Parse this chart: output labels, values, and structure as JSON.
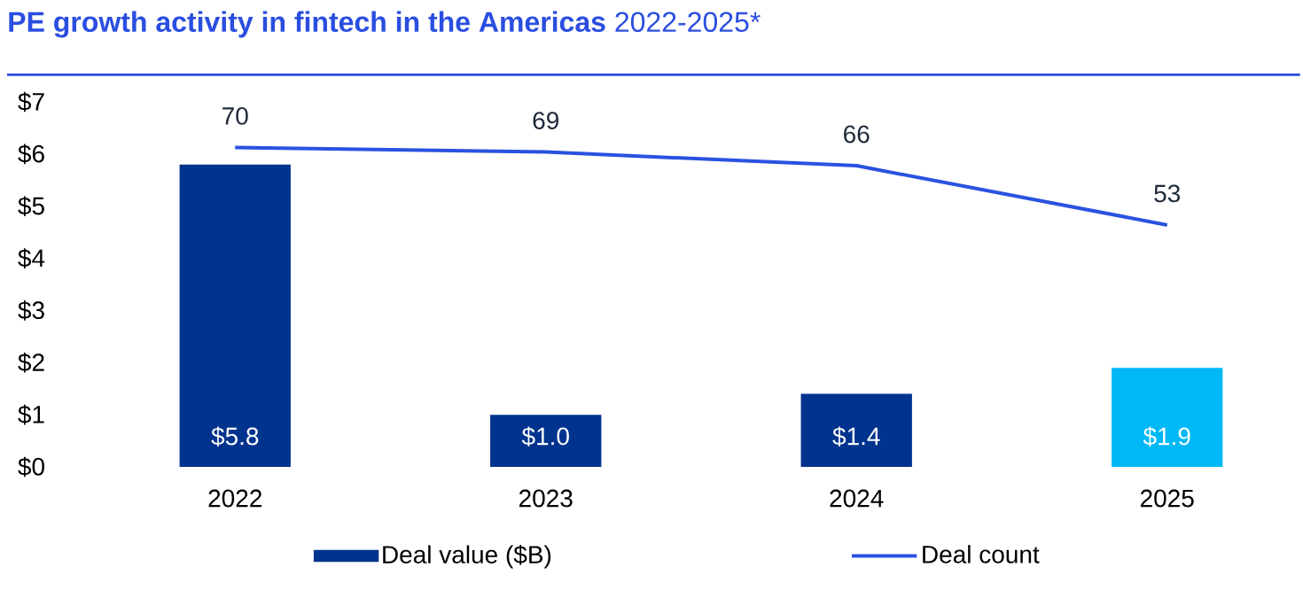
{
  "chart_data": {
    "type": "bar",
    "title": "**PE growth activity in fintech in the Americas** 2022-2025*",
    "categories": [
      "2022",
      "2023",
      "2024",
      "2025"
    ],
    "series": [
      {
        "name": "Deal value ($B)",
        "colors": [
          "#00338d",
          "#00338d",
          "#00338d",
          "#00b8f5"
        ],
        "values": [
          5.8,
          1.0,
          1.4,
          1.9
        ],
        "value_labels": [
          "$5.8",
          "$1.0",
          "$1.4",
          "$1.9"
        ]
      },
      {
        "name": "Deal count",
        "type": "line",
        "axis": "y2",
        "color": "#2a52e0",
        "values": [
          70,
          69,
          66,
          53
        ],
        "value_labels": [
          "70",
          "69",
          "66",
          "53"
        ]
      }
    ],
    "ylim": [
      0,
      7
    ],
    "yticks": [
      {
        "value": 0,
        "label": "$0"
      },
      {
        "value": 1,
        "label": "$1"
      },
      {
        "value": 2,
        "label": "$2"
      },
      {
        "value": 3,
        "label": "$3"
      },
      {
        "value": 4,
        "label": "$4"
      },
      {
        "value": 5,
        "label": "$5"
      },
      {
        "value": 6,
        "label": "$6"
      },
      {
        "value": 7,
        "label": "$7"
      }
    ],
    "legend": "bottom",
    "grid": false
  }
}
